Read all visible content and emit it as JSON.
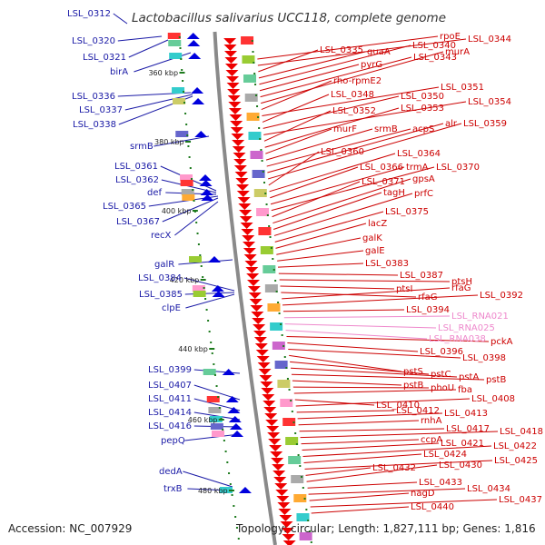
{
  "title": "Lactobacillus salivarius UCC118, complete genome",
  "footer": {
    "accession": "Accession: NC_007929",
    "summary": "Topology: circular; Length: 1,827,111 bp; Genes: 1,816"
  },
  "colors": {
    "left_label": "#1a1aa6",
    "right_label": "#cc0000",
    "rna_label": "#ee88cc",
    "forward_strand": "#0000dd",
    "reverse_strand": "#ee0000",
    "backbone": "#8a8a8a",
    "tick": "#1d7a1d"
  },
  "kbp_ticks": [
    {
      "label": "360 kbp",
      "pos": 360
    },
    {
      "label": "380 kbp",
      "pos": 380
    },
    {
      "label": "400 kbp",
      "pos": 400
    },
    {
      "label": "420 kbp",
      "pos": 420
    },
    {
      "label": "440 kbp",
      "pos": 440
    },
    {
      "label": "460 kbp",
      "pos": 460
    },
    {
      "label": "480 kbp",
      "pos": 480
    }
  ],
  "left_labels": [
    "LSL_0312",
    "LSL_0320",
    "LSL_0321",
    "birA",
    "LSL_0336",
    "LSL_0337",
    "LSL_0338",
    "srmB",
    "LSL_0361",
    "LSL_0362",
    "def",
    "LSL_0365",
    "LSL_0367",
    "recX",
    "galR",
    "LSL_0384",
    "LSL_0385",
    "clpE",
    "LSL_0399",
    "LSL_0407",
    "LSL_0411",
    "LSL_0414",
    "LSL_0416",
    "pepQ",
    "dedA",
    "trxB"
  ],
  "right_labels": [
    "rpoE",
    "LSL_0344",
    "LSL_0335",
    "guaA",
    "LSL_0340",
    "pyrG",
    "LSL_0343",
    "murA",
    "rho-rpmE2",
    "LSL_0351",
    "LSL_0348",
    "LSL_0350",
    "LSL_0354",
    "LSL_0352",
    "LSL_0353",
    "murF",
    "srmB",
    "acpS",
    "alr",
    "LSL_0359",
    "LSL_0360",
    "LSL_0364",
    "LSL_0366",
    "trmA",
    "LSL_0370",
    "LSL_0371",
    "gpsA",
    "tagH",
    "prfC",
    "LSL_0375",
    "lacZ",
    "galK",
    "galE",
    "LSL_0383",
    "LSL_0387",
    "ptsH",
    "ptsI",
    "rfaG",
    "rfaG",
    "LSL_0392",
    "LSL_0394",
    "LSL_RNA021",
    "LSL_RNA025",
    "LSL_RNA038",
    "pckA",
    "LSL_0396",
    "LSL_0398",
    "pstS",
    "pstC",
    "pstA",
    "pstB",
    "pstB",
    "phoU",
    "fba",
    "LSL_0410",
    "LSL_0408",
    "LSL_0412",
    "LSL_0413",
    "rnhA",
    "LSL_0417",
    "LSL_0418",
    "ccpA",
    "LSL_0421",
    "LSL_0422",
    "LSL_0424",
    "LSL_0425",
    "LSL_0432",
    "LSL_0430",
    "LSL_0433",
    "LSL_0434",
    "nagD",
    "LSL_0437",
    "LSL_0440"
  ]
}
